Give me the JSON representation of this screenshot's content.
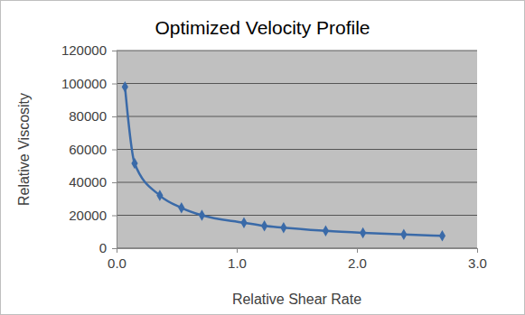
{
  "chart_data": {
    "type": "line",
    "title": "Optimized Velocity Profile",
    "x_label": "Relative Shear Rate",
    "y_label": "Relative Viscosity",
    "x": [
      0.07,
      0.15,
      0.36,
      0.54,
      0.71,
      1.06,
      1.23,
      1.39,
      1.74,
      2.05,
      2.39,
      2.71
    ],
    "values": [
      98000,
      51500,
      32000,
      24500,
      20000,
      15500,
      13500,
      12500,
      10500,
      9300,
      8300,
      7500
    ],
    "color": "#3a6aa8",
    "marker": "diamond",
    "line_style": "smooth",
    "xlim": [
      0,
      3
    ],
    "xticks": [
      {
        "value": 0,
        "label": "0.0"
      },
      {
        "value": 1,
        "label": "1.0"
      },
      {
        "value": 2,
        "label": "2.0"
      },
      {
        "value": 3,
        "label": "3.0"
      }
    ],
    "ylim": [
      0,
      120000
    ],
    "yticks": [
      0,
      20000,
      40000,
      60000,
      80000,
      100000,
      120000
    ],
    "grid": true
  }
}
